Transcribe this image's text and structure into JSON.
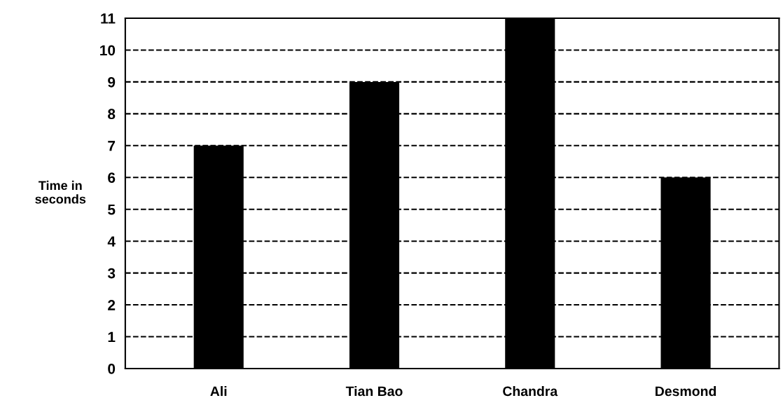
{
  "chart_data": {
    "type": "bar",
    "ylabel": "Time in\nseconds",
    "categories": [
      "Ali",
      "Tian Bao",
      "Chandra",
      "Desmond"
    ],
    "values": [
      7,
      9,
      11,
      6
    ],
    "color": "#000000",
    "ylim": [
      0,
      11
    ],
    "yticks": [
      0,
      1,
      2,
      3,
      4,
      5,
      6,
      7,
      8,
      9,
      10,
      11
    ],
    "grid": "y",
    "line_style": "dashed"
  }
}
